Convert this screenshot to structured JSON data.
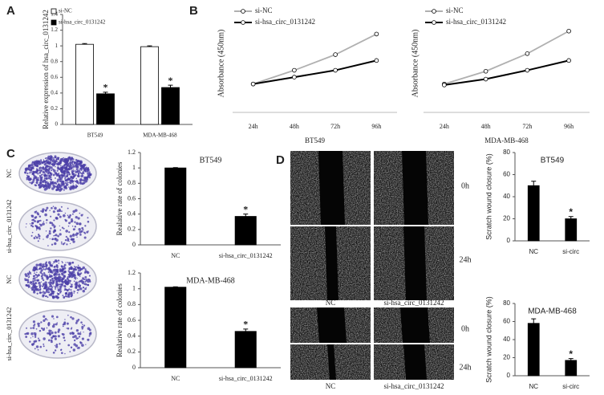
{
  "chart_data": [
    {
      "type": "bar",
      "panel": "A",
      "categories": [
        "BT549",
        "MDA-MB-468"
      ],
      "ylabel": "Relative expression of hsa_circ_0131242",
      "series": [
        {
          "name": "si-NC",
          "color": "#ffffff",
          "values": [
            1.02,
            0.99
          ],
          "errors": [
            0.01,
            0.01
          ]
        },
        {
          "name": "si-hsa_circ_0131242",
          "color": "#000000",
          "values": [
            0.39,
            0.47
          ],
          "errors": [
            0.02,
            0.03
          ],
          "annotations": [
            "*",
            "*"
          ]
        }
      ],
      "ylim": [
        0,
        1.4
      ],
      "yticks": [
        0,
        0.2,
        0.4,
        0.6,
        0.8,
        1,
        1.2,
        1.4
      ],
      "legend": "upper left"
    },
    {
      "type": "line",
      "panel": "B",
      "categories": [
        "24h",
        "48h",
        "72h",
        "96h"
      ],
      "xlabel": "BT549",
      "ylabel": "Absorbance (450nm)",
      "series": [
        {
          "name": "si-NC",
          "color": "#b0b0b0",
          "values": [
            0.29,
            0.43,
            0.59,
            0.8
          ]
        },
        {
          "name": "si-hsa_circ_0131242",
          "color": "#000000",
          "values": [
            0.29,
            0.36,
            0.43,
            0.53
          ]
        }
      ],
      "ylim": [
        0,
        1
      ],
      "legend": "upper left"
    },
    {
      "type": "line",
      "categories": [
        "24h",
        "48h",
        "72h",
        "96h"
      ],
      "xlabel": "MDA-MB-468",
      "ylabel": "Absorbance (450nm)",
      "series": [
        {
          "name": "si-NC",
          "color": "#b0b0b0",
          "values": [
            0.29,
            0.42,
            0.6,
            0.83
          ]
        },
        {
          "name": "si-hsa_circ_0131242",
          "color": "#000000",
          "values": [
            0.28,
            0.34,
            0.43,
            0.53
          ]
        }
      ],
      "ylim": [
        0,
        1
      ],
      "legend": "upper left"
    },
    {
      "type": "bar",
      "panel": "C",
      "title": "BT549",
      "categories": [
        "NC",
        "si-hsa_circ_0131242"
      ],
      "ylabel": "Realative rate of colonies",
      "values": [
        1.0,
        0.37
      ],
      "errors": [
        0.005,
        0.03
      ],
      "color": "#000000",
      "annotations": [
        null,
        "*"
      ],
      "ylim": [
        0,
        1.2
      ],
      "yticks": [
        0,
        0.2,
        0.4,
        0.6,
        0.8,
        1,
        1.2
      ]
    },
    {
      "type": "bar",
      "title": "MDA-MB-468",
      "categories": [
        "NC",
        "si-hsa_circ_0131242"
      ],
      "ylabel": "Realative rate of colonies",
      "values": [
        1.02,
        0.46
      ],
      "errors": [
        0.005,
        0.03
      ],
      "color": "#000000",
      "annotations": [
        null,
        "*"
      ],
      "ylim": [
        0,
        1.2
      ],
      "yticks": [
        0,
        0.2,
        0.4,
        0.6,
        0.8,
        1,
        1.2
      ]
    },
    {
      "type": "bar",
      "panel": "D",
      "title": "BT549",
      "categories": [
        "NC",
        "si-circ"
      ],
      "ylabel": "Scratch wound closure (%)",
      "values": [
        50,
        20
      ],
      "errors": [
        4,
        2
      ],
      "color": "#000000",
      "annotations": [
        null,
        "*"
      ],
      "ylim": [
        0,
        80
      ],
      "yticks": [
        0,
        20,
        40,
        60,
        80
      ]
    },
    {
      "type": "bar",
      "title": "MDA-MB-468",
      "categories": [
        "NC",
        "si-circ"
      ],
      "ylabel": "Scratch wound closure (%)",
      "values": [
        58,
        17
      ],
      "errors": [
        5,
        2
      ],
      "color": "#000000",
      "annotations": [
        null,
        "*"
      ],
      "ylim": [
        0,
        80
      ],
      "yticks": [
        0,
        20,
        40,
        60,
        80
      ]
    }
  ],
  "images": {
    "colony": {
      "labels": [
        "NC",
        "si-hsa_circ_0131242",
        "NC",
        "si-hsa_circ_0131242"
      ]
    },
    "scratch": {
      "columns": [
        "NC",
        "si-hsa_circ_0131242",
        "NC",
        "si-hsa_circ_0131242"
      ],
      "rows": [
        "0h",
        "24h",
        "0h",
        "24h"
      ]
    }
  }
}
